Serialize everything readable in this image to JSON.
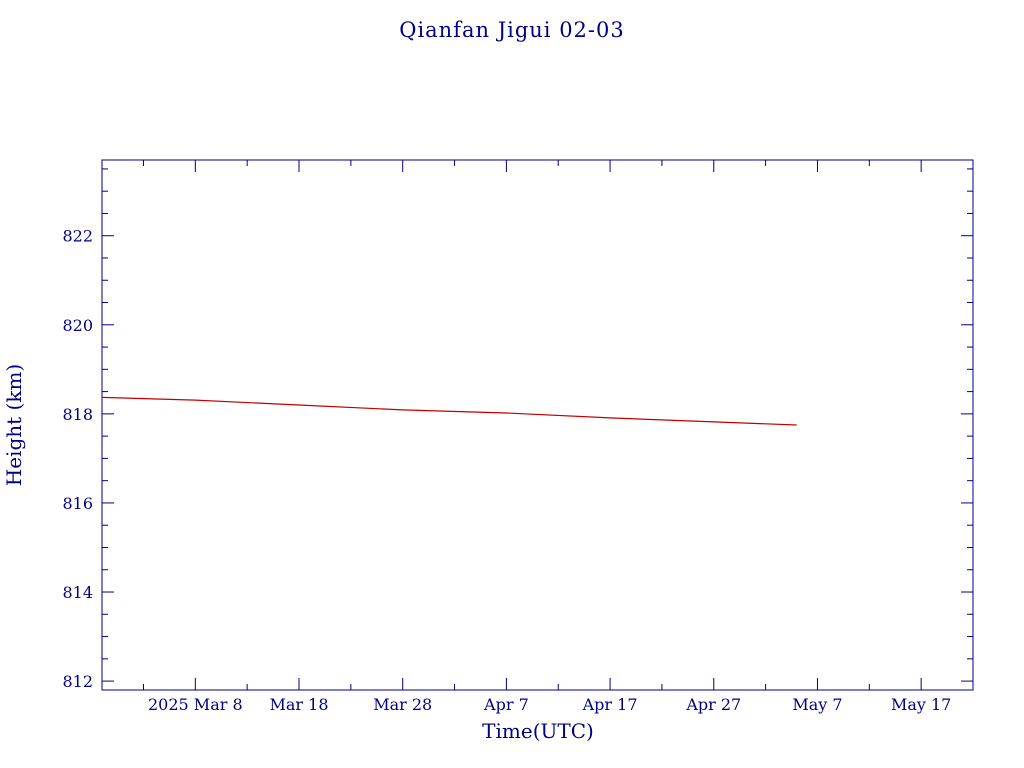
{
  "chart_data": {
    "type": "line",
    "title": "Qianfan Jigui 02-03",
    "xlabel": "Time(UTC)",
    "ylabel": "Height (km)",
    "x_tick_labels": [
      "2025 Mar  8",
      "Mar 18",
      "Mar 28",
      "Apr  7",
      "Apr 17",
      "Apr 27",
      "May  7",
      "May 17"
    ],
    "y_tick_labels": [
      "812",
      "814",
      "816",
      "818",
      "820",
      "822"
    ],
    "xlim": [
      "2025-02-27",
      "2025-05-22"
    ],
    "ylim": [
      811.8,
      823.7
    ],
    "grid": false,
    "axis_color": "#000080",
    "series": [
      {
        "color": "#c00000",
        "x": [
          "2025-02-27",
          "2025-03-08",
          "2025-03-18",
          "2025-03-28",
          "2025-04-07",
          "2025-04-17",
          "2025-04-27",
          "2025-05-05"
        ],
        "values": [
          818.37,
          818.31,
          818.2,
          818.09,
          818.02,
          817.91,
          817.82,
          817.75
        ]
      }
    ]
  }
}
